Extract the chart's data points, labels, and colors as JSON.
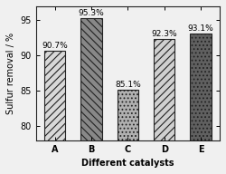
{
  "categories": [
    "A",
    "B",
    "C",
    "D",
    "E"
  ],
  "values": [
    90.7,
    95.3,
    85.1,
    92.3,
    93.1
  ],
  "labels": [
    "90.7%",
    "95.3%",
    "85.1%",
    "92.3%",
    "93.1%"
  ],
  "bar_facecolors": [
    "#d8d8d8",
    "#888888",
    "#b0b0b0",
    "#d0d0d0",
    "#606060"
  ],
  "hatch_patterns": [
    "////",
    "\\\\\\\\",
    "....",
    "////",
    "...."
  ],
  "xlabel": "Different catalysts",
  "ylabel": "Sulfur removal / %",
  "ylim": [
    78,
    97
  ],
  "yticks": [
    80,
    85,
    90,
    95
  ],
  "axis_fontsize": 7,
  "label_fontsize": 6.5,
  "background_color": "#f0f0f0",
  "bar_edgecolor": "#222222",
  "bar_width": 0.58
}
